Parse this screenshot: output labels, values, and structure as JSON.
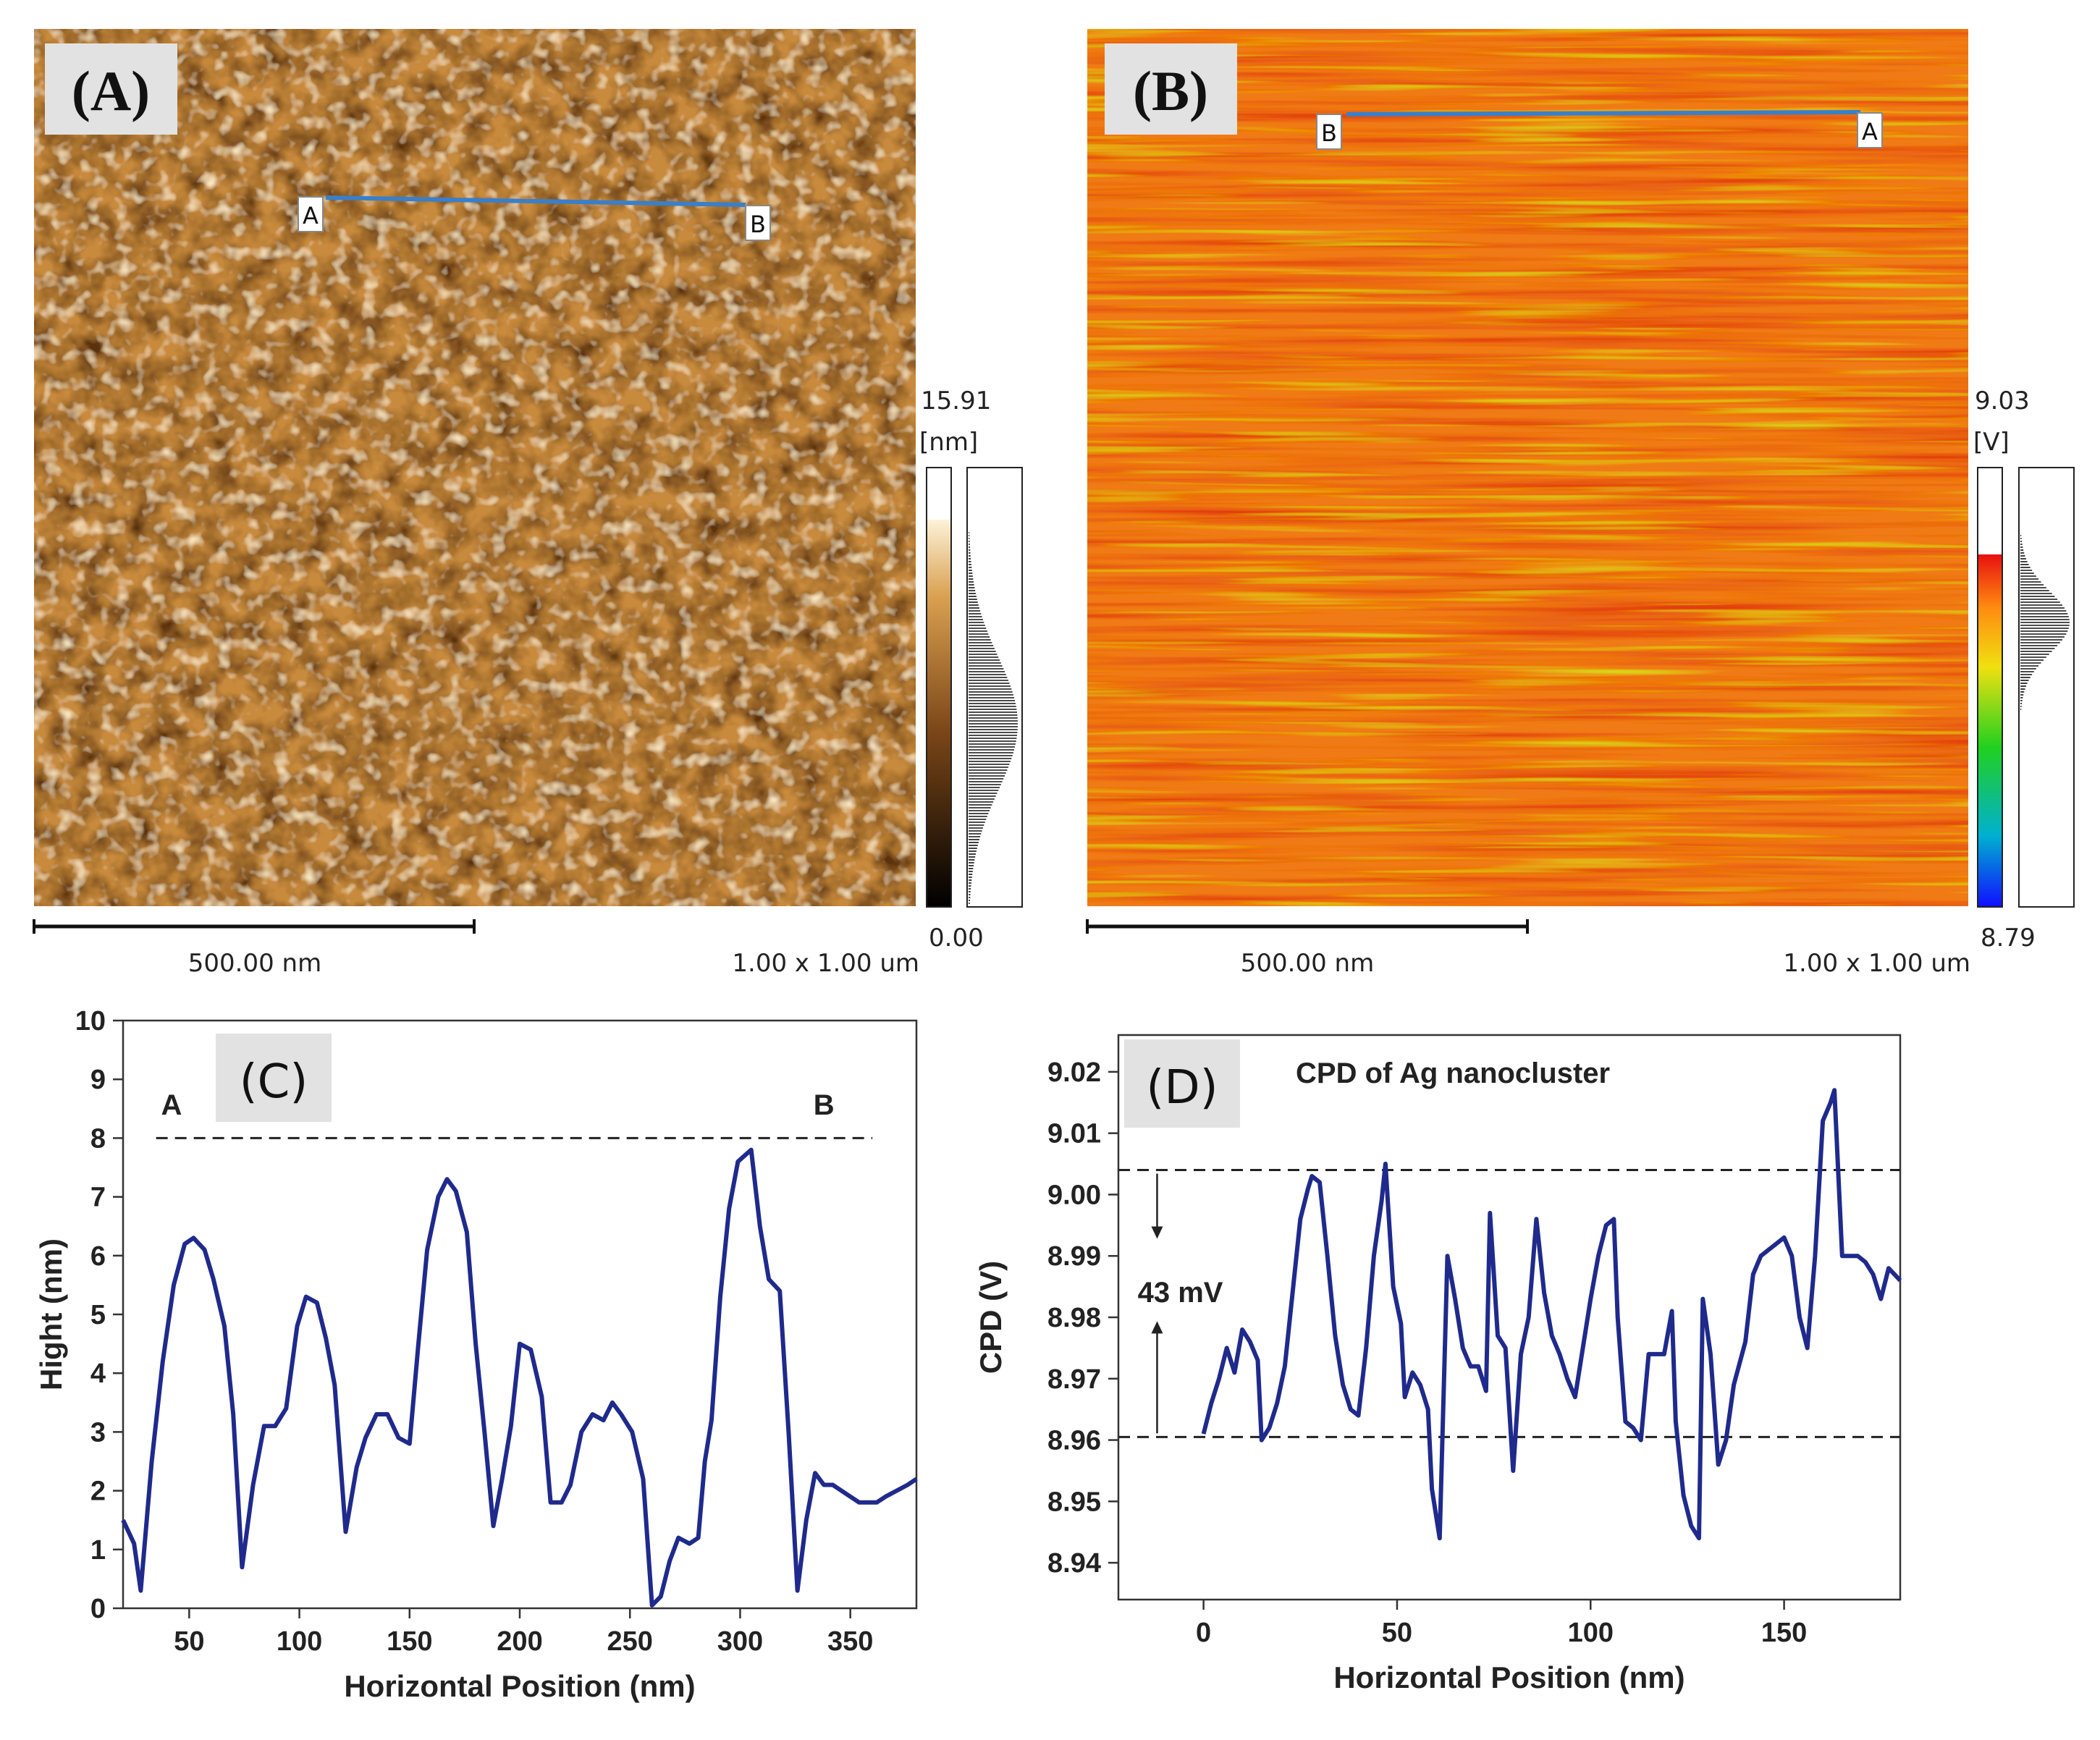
{
  "panels": {
    "A": {
      "tag": "(A)",
      "colorbar_max": "15.91",
      "colorbar_unit": "[nm]",
      "colorbar_min": "0.00",
      "scalebar_label": "500.00 nm",
      "scan_size": "1.00 x 1.00 um",
      "line_start_label": "A",
      "line_end_label": "B"
    },
    "B": {
      "tag": "(B)",
      "colorbar_max": "9.03",
      "colorbar_unit": "[V]",
      "colorbar_min": "8.79",
      "scalebar_label": "500.00 nm",
      "scan_size": "1.00 x 1.00 um",
      "line_start_label": "B",
      "line_end_label": "A"
    }
  },
  "colors": {
    "profile_line": "#1f2a8c",
    "scan_line": "#3a7fc8",
    "afm_dark": "#6b3d12",
    "afm_light": "#f7e2b0",
    "kpfm_orange": "#f07a18",
    "tag_bg": "#e2e2e2"
  },
  "chart_data": [
    {
      "type": "line",
      "panel": "(C)",
      "title": "",
      "xlabel": "Horizontal Position (nm)",
      "ylabel": "Hight (nm)",
      "xlim": [
        20,
        380
      ],
      "ylim": [
        0,
        10
      ],
      "xticks": [
        50,
        100,
        150,
        200,
        250,
        300,
        350
      ],
      "yticks": [
        0,
        1,
        2,
        3,
        4,
        5,
        6,
        7,
        8,
        9,
        10
      ],
      "reference_line": {
        "y": 8,
        "x_from": 35,
        "x_to": 360
      },
      "annotations": [
        {
          "text": "A",
          "x": 42,
          "y": 8.4
        },
        {
          "text": "B",
          "x": 338,
          "y": 8.4
        }
      ],
      "series": [
        {
          "name": "height profile",
          "x": [
            20,
            25,
            28,
            33,
            38,
            43,
            48,
            52,
            57,
            61,
            66,
            70,
            74,
            79,
            84,
            89,
            94,
            99,
            103,
            108,
            112,
            116,
            121,
            126,
            130,
            135,
            140,
            145,
            150,
            154,
            158,
            163,
            167,
            171,
            176,
            180,
            184,
            188,
            192,
            196,
            200,
            205,
            210,
            214,
            219,
            223,
            228,
            233,
            238,
            242,
            246,
            251,
            256,
            260,
            264,
            268,
            272,
            277,
            281,
            284,
            287,
            291,
            295,
            299,
            302,
            305,
            309,
            313,
            318,
            322,
            326,
            330,
            334,
            338,
            342,
            346,
            350,
            354,
            358,
            362,
            366,
            371,
            376,
            380
          ],
          "y": [
            1.5,
            1.1,
            0.3,
            2.5,
            4.2,
            5.5,
            6.2,
            6.3,
            6.1,
            5.6,
            4.8,
            3.3,
            0.7,
            2.1,
            3.1,
            3.1,
            3.4,
            4.8,
            5.3,
            5.2,
            4.6,
            3.8,
            1.3,
            2.4,
            2.9,
            3.3,
            3.3,
            2.9,
            2.8,
            4.5,
            6.1,
            7.0,
            7.3,
            7.1,
            6.4,
            4.5,
            3.0,
            1.4,
            2.2,
            3.1,
            4.5,
            4.4,
            3.6,
            1.8,
            1.8,
            2.1,
            3.0,
            3.3,
            3.2,
            3.5,
            3.3,
            3.0,
            2.2,
            0.05,
            0.2,
            0.8,
            1.2,
            1.1,
            1.2,
            2.5,
            3.2,
            5.3,
            6.8,
            7.6,
            7.7,
            7.8,
            6.5,
            5.6,
            5.4,
            3.0,
            0.3,
            1.5,
            2.3,
            2.1,
            2.1,
            2.0,
            1.9,
            1.8,
            1.8,
            1.8,
            1.9,
            2.0,
            2.1,
            2.2
          ]
        }
      ]
    },
    {
      "type": "line",
      "panel": "(D)",
      "title": "CPD of Ag nanocluster",
      "xlabel": "Horizontal Position (nm)",
      "ylabel": "CPD (V)",
      "xlim": [
        -22,
        180
      ],
      "ylim": [
        8.934,
        9.026
      ],
      "xticks": [
        0,
        50,
        100,
        150
      ],
      "yticks": [
        8.94,
        8.95,
        8.96,
        8.97,
        8.98,
        8.99,
        9.0,
        9.01,
        9.02
      ],
      "ytick_labels": [
        "8.94",
        "8.95",
        "8.96",
        "8.97",
        "8.98",
        "8.99",
        "9.00",
        "9.01",
        "9.02"
      ],
      "reference_lines": [
        {
          "y": 9.004
        },
        {
          "y": 8.9605
        }
      ],
      "annotations": [
        {
          "text": "43 mV",
          "x": -6,
          "y": 8.9825
        }
      ],
      "series": [
        {
          "name": "CPD profile",
          "x": [
            0,
            2,
            4,
            6,
            8,
            10,
            12,
            14,
            15,
            17,
            19,
            21,
            23,
            25,
            27,
            28,
            30,
            32,
            34,
            36,
            38,
            40,
            42,
            44,
            46,
            47,
            49,
            51,
            52,
            54,
            56,
            58,
            59,
            61,
            63,
            65,
            67,
            69,
            71,
            73,
            74,
            76,
            78,
            80,
            82,
            84,
            86,
            88,
            90,
            92,
            94,
            96,
            98,
            100,
            102,
            104,
            106,
            107,
            109,
            111,
            113,
            115,
            117,
            119,
            121,
            122,
            124,
            126,
            128,
            129,
            131,
            133,
            135,
            137,
            140,
            142,
            144,
            146,
            148,
            150,
            152,
            154,
            156,
            158,
            160,
            162,
            163,
            165,
            167,
            169,
            171,
            173,
            175,
            177,
            180
          ],
          "y": [
            8.961,
            8.966,
            8.97,
            8.975,
            8.971,
            8.978,
            8.976,
            8.973,
            8.96,
            8.962,
            8.966,
            8.972,
            8.984,
            8.996,
            9.001,
            9.003,
            9.002,
            8.99,
            8.977,
            8.969,
            8.965,
            8.964,
            8.975,
            8.99,
            8.999,
            9.005,
            8.985,
            8.979,
            8.967,
            8.971,
            8.969,
            8.965,
            8.952,
            8.944,
            8.99,
            8.983,
            8.975,
            8.972,
            8.972,
            8.968,
            8.997,
            8.977,
            8.975,
            8.955,
            8.974,
            8.98,
            8.996,
            8.984,
            8.977,
            8.974,
            8.97,
            8.967,
            8.975,
            8.983,
            8.99,
            8.995,
            8.996,
            8.98,
            8.963,
            8.962,
            8.96,
            8.974,
            8.974,
            8.974,
            8.981,
            8.963,
            8.951,
            8.946,
            8.944,
            8.983,
            8.974,
            8.956,
            8.96,
            8.969,
            8.976,
            8.987,
            8.99,
            8.991,
            8.992,
            8.993,
            8.99,
            8.98,
            8.975,
            8.99,
            9.012,
            9.015,
            9.017,
            8.99,
            8.99,
            8.99,
            8.989,
            8.987,
            8.983,
            8.988,
            8.986
          ]
        }
      ]
    }
  ]
}
